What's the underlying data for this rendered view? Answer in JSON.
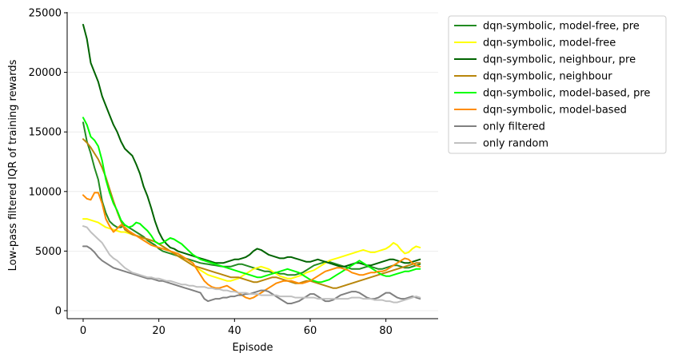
{
  "chart_data": {
    "type": "line",
    "xlabel": "Episode",
    "ylabel": "Low-pass filtered IQR of training rewards",
    "xlim": [
      -4.5,
      93.5
    ],
    "ylim": [
      -750,
      25000
    ],
    "xticks": [
      0,
      20,
      40,
      60,
      80
    ],
    "yticks": [
      0,
      5000,
      10000,
      15000,
      20000,
      25000
    ],
    "grid": "horizontal",
    "legend_position": "outside-right",
    "series": [
      {
        "name": "dqn-symbolic, model-free, pre",
        "color": "#228b22",
        "values": [
          15800,
          14200,
          13200,
          12000,
          11000,
          9200,
          8200,
          7500,
          7200,
          7000,
          7000,
          7200,
          7000,
          6800,
          6600,
          6400,
          6200,
          5900,
          5700,
          5500,
          5200,
          5000,
          4900,
          4800,
          4700,
          4600,
          4500,
          4400,
          4300,
          4200,
          4100,
          4000,
          3950,
          3900,
          3850,
          3800,
          3750,
          3700,
          3700,
          3700,
          3800,
          3900,
          3900,
          3800,
          3700,
          3600,
          3500,
          3400,
          3300,
          3300,
          3200,
          3200,
          3100,
          3100,
          3000,
          3000,
          3000,
          3100,
          3200,
          3400,
          3600,
          3800,
          3900,
          4000,
          4100,
          4100,
          4000,
          3900,
          3800,
          3700,
          3600,
          3500,
          3500,
          3500,
          3600,
          3700,
          3700,
          3600,
          3500,
          3500,
          3600,
          3700,
          3800,
          3800,
          3700,
          3600,
          3600,
          3700,
          3800,
          3900
        ]
      },
      {
        "name": "dqn-symbolic, model-free",
        "color": "#ffff00",
        "values": [
          7700,
          7700,
          7600,
          7500,
          7400,
          7200,
          7000,
          6900,
          6800,
          6700,
          6600,
          6600,
          6500,
          6400,
          6300,
          6200,
          6100,
          6000,
          5900,
          5800,
          5600,
          5400,
          5200,
          5000,
          4800,
          4600,
          4400,
          4200,
          4000,
          3800,
          3600,
          3400,
          3200,
          3000,
          2900,
          2800,
          2700,
          2600,
          2500,
          2500,
          2600,
          2700,
          2900,
          3100,
          3300,
          3500,
          3600,
          3700,
          3600,
          3500,
          3300,
          3100,
          2900,
          2800,
          2700,
          2700,
          2800,
          2900,
          3000,
          3200,
          3300,
          3400,
          3600,
          3800,
          4000,
          4200,
          4300,
          4400,
          4500,
          4600,
          4700,
          4800,
          4900,
          5000,
          5100,
          5000,
          4900,
          4900,
          5000,
          5100,
          5200,
          5400,
          5700,
          5500,
          5100,
          4800,
          4900,
          5200,
          5400,
          5300
        ]
      },
      {
        "name": "dqn-symbolic, neighbour, pre",
        "color": "#006400",
        "values": [
          24000,
          22800,
          20800,
          20000,
          19200,
          18000,
          17200,
          16400,
          15600,
          15000,
          14200,
          13600,
          13300,
          13000,
          12300,
          11500,
          10400,
          9600,
          8600,
          7500,
          6600,
          6000,
          5600,
          5300,
          5200,
          5000,
          4900,
          4800,
          4700,
          4600,
          4500,
          4400,
          4300,
          4200,
          4100,
          4000,
          4000,
          4000,
          4100,
          4200,
          4300,
          4300,
          4400,
          4500,
          4700,
          5000,
          5200,
          5100,
          4900,
          4700,
          4600,
          4500,
          4400,
          4400,
          4500,
          4500,
          4400,
          4300,
          4200,
          4100,
          4100,
          4200,
          4300,
          4200,
          4100,
          4000,
          3900,
          3800,
          3700,
          3700,
          3800,
          3900,
          4000,
          4000,
          3900,
          3800,
          3800,
          3900,
          4000,
          4100,
          4200,
          4300,
          4300,
          4200,
          4100,
          4000,
          4000,
          4100,
          4200,
          4300
        ]
      },
      {
        "name": "dqn-symbolic, neighbour",
        "color": "#b8860b",
        "values": [
          14400,
          14100,
          13700,
          13200,
          12700,
          12000,
          11200,
          10200,
          9200,
          8300,
          7500,
          6800,
          6600,
          6400,
          6300,
          6200,
          6100,
          6000,
          5900,
          5800,
          5600,
          5400,
          5200,
          5000,
          4800,
          4600,
          4400,
          4200,
          4000,
          3800,
          3700,
          3600,
          3500,
          3400,
          3300,
          3200,
          3100,
          3000,
          2900,
          2800,
          2800,
          2800,
          2700,
          2600,
          2500,
          2400,
          2400,
          2500,
          2600,
          2700,
          2800,
          2800,
          2700,
          2600,
          2500,
          2400,
          2300,
          2300,
          2400,
          2500,
          2500,
          2400,
          2300,
          2200,
          2100,
          2000,
          1900,
          1900,
          2000,
          2100,
          2200,
          2300,
          2400,
          2500,
          2600,
          2700,
          2800,
          2900,
          3000,
          3100,
          3200,
          3300,
          3400,
          3500,
          3600,
          3700,
          3800,
          3900,
          4000,
          4000
        ]
      },
      {
        "name": "dqn-symbolic, model-based, pre",
        "color": "#00ff00",
        "values": [
          16200,
          15600,
          14600,
          14300,
          13800,
          12600,
          11000,
          9900,
          9000,
          8400,
          7600,
          7200,
          7000,
          7100,
          7400,
          7300,
          7000,
          6700,
          6300,
          5800,
          5600,
          5700,
          5900,
          6100,
          6000,
          5800,
          5600,
          5300,
          5000,
          4700,
          4500,
          4300,
          4200,
          4100,
          4000,
          3900,
          3800,
          3700,
          3600,
          3500,
          3400,
          3300,
          3200,
          3100,
          3000,
          2900,
          2800,
          2800,
          2900,
          3000,
          3100,
          3200,
          3300,
          3400,
          3500,
          3400,
          3300,
          3200,
          3000,
          2800,
          2600,
          2500,
          2400,
          2400,
          2500,
          2600,
          2800,
          3000,
          3200,
          3400,
          3600,
          3800,
          4000,
          4200,
          4000,
          3800,
          3600,
          3400,
          3200,
          3000,
          2900,
          2900,
          3000,
          3100,
          3200,
          3300,
          3300,
          3400,
          3500,
          3500
        ]
      },
      {
        "name": "dqn-symbolic, model-based",
        "color": "#ff8c00",
        "values": [
          9700,
          9400,
          9300,
          9900,
          9900,
          9000,
          7700,
          7100,
          6600,
          6900,
          7200,
          7000,
          6700,
          6500,
          6300,
          6100,
          5900,
          5700,
          5500,
          5400,
          5300,
          5200,
          5100,
          5000,
          4900,
          4800,
          4600,
          4400,
          4200,
          4000,
          3500,
          3000,
          2500,
          2200,
          2000,
          1900,
          1900,
          2000,
          2100,
          1900,
          1700,
          1500,
          1300,
          1100,
          1000,
          1100,
          1300,
          1500,
          1700,
          1900,
          2100,
          2300,
          2400,
          2500,
          2500,
          2500,
          2400,
          2300,
          2300,
          2400,
          2500,
          2700,
          2900,
          3100,
          3300,
          3400,
          3500,
          3600,
          3600,
          3500,
          3400,
          3200,
          3100,
          3000,
          3000,
          3100,
          3200,
          3200,
          3300,
          3300,
          3400,
          3600,
          3800,
          4000,
          4200,
          4400,
          4300,
          4000,
          3800,
          3700
        ]
      },
      {
        "name": "only filtered",
        "color": "#808080",
        "values": [
          5400,
          5400,
          5200,
          4900,
          4500,
          4200,
          4000,
          3800,
          3600,
          3500,
          3400,
          3300,
          3200,
          3100,
          3000,
          2900,
          2800,
          2700,
          2700,
          2600,
          2500,
          2500,
          2400,
          2300,
          2200,
          2100,
          2000,
          1900,
          1800,
          1700,
          1600,
          1500,
          1000,
          800,
          900,
          1000,
          1000,
          1100,
          1100,
          1200,
          1200,
          1300,
          1300,
          1400,
          1400,
          1500,
          1600,
          1700,
          1700,
          1600,
          1400,
          1200,
          1000,
          800,
          600,
          600,
          700,
          800,
          1000,
          1200,
          1400,
          1400,
          1200,
          1000,
          800,
          800,
          900,
          1100,
          1300,
          1400,
          1500,
          1600,
          1600,
          1500,
          1300,
          1100,
          1000,
          1000,
          1100,
          1300,
          1500,
          1500,
          1300,
          1100,
          1000,
          1000,
          1100,
          1200,
          1100,
          1000
        ]
      },
      {
        "name": "only random",
        "color": "#c0c0c0",
        "values": [
          7100,
          7000,
          6600,
          6300,
          6000,
          5700,
          5200,
          4700,
          4400,
          4200,
          3900,
          3600,
          3400,
          3200,
          3100,
          3000,
          2900,
          2800,
          2800,
          2700,
          2700,
          2600,
          2500,
          2500,
          2400,
          2300,
          2200,
          2200,
          2100,
          2100,
          2000,
          2000,
          2000,
          1900,
          1900,
          1800,
          1800,
          1700,
          1700,
          1600,
          1600,
          1500,
          1500,
          1500,
          1400,
          1400,
          1400,
          1300,
          1300,
          1300,
          1300,
          1300,
          1200,
          1200,
          1200,
          1200,
          1100,
          1100,
          1100,
          1100,
          1100,
          1100,
          1000,
          1000,
          1000,
          1000,
          1000,
          1000,
          1000,
          1000,
          1000,
          1100,
          1100,
          1100,
          1000,
          1000,
          1000,
          900,
          900,
          900,
          800,
          800,
          700,
          700,
          800,
          900,
          1000,
          1100,
          1200,
          1100
        ]
      }
    ]
  }
}
